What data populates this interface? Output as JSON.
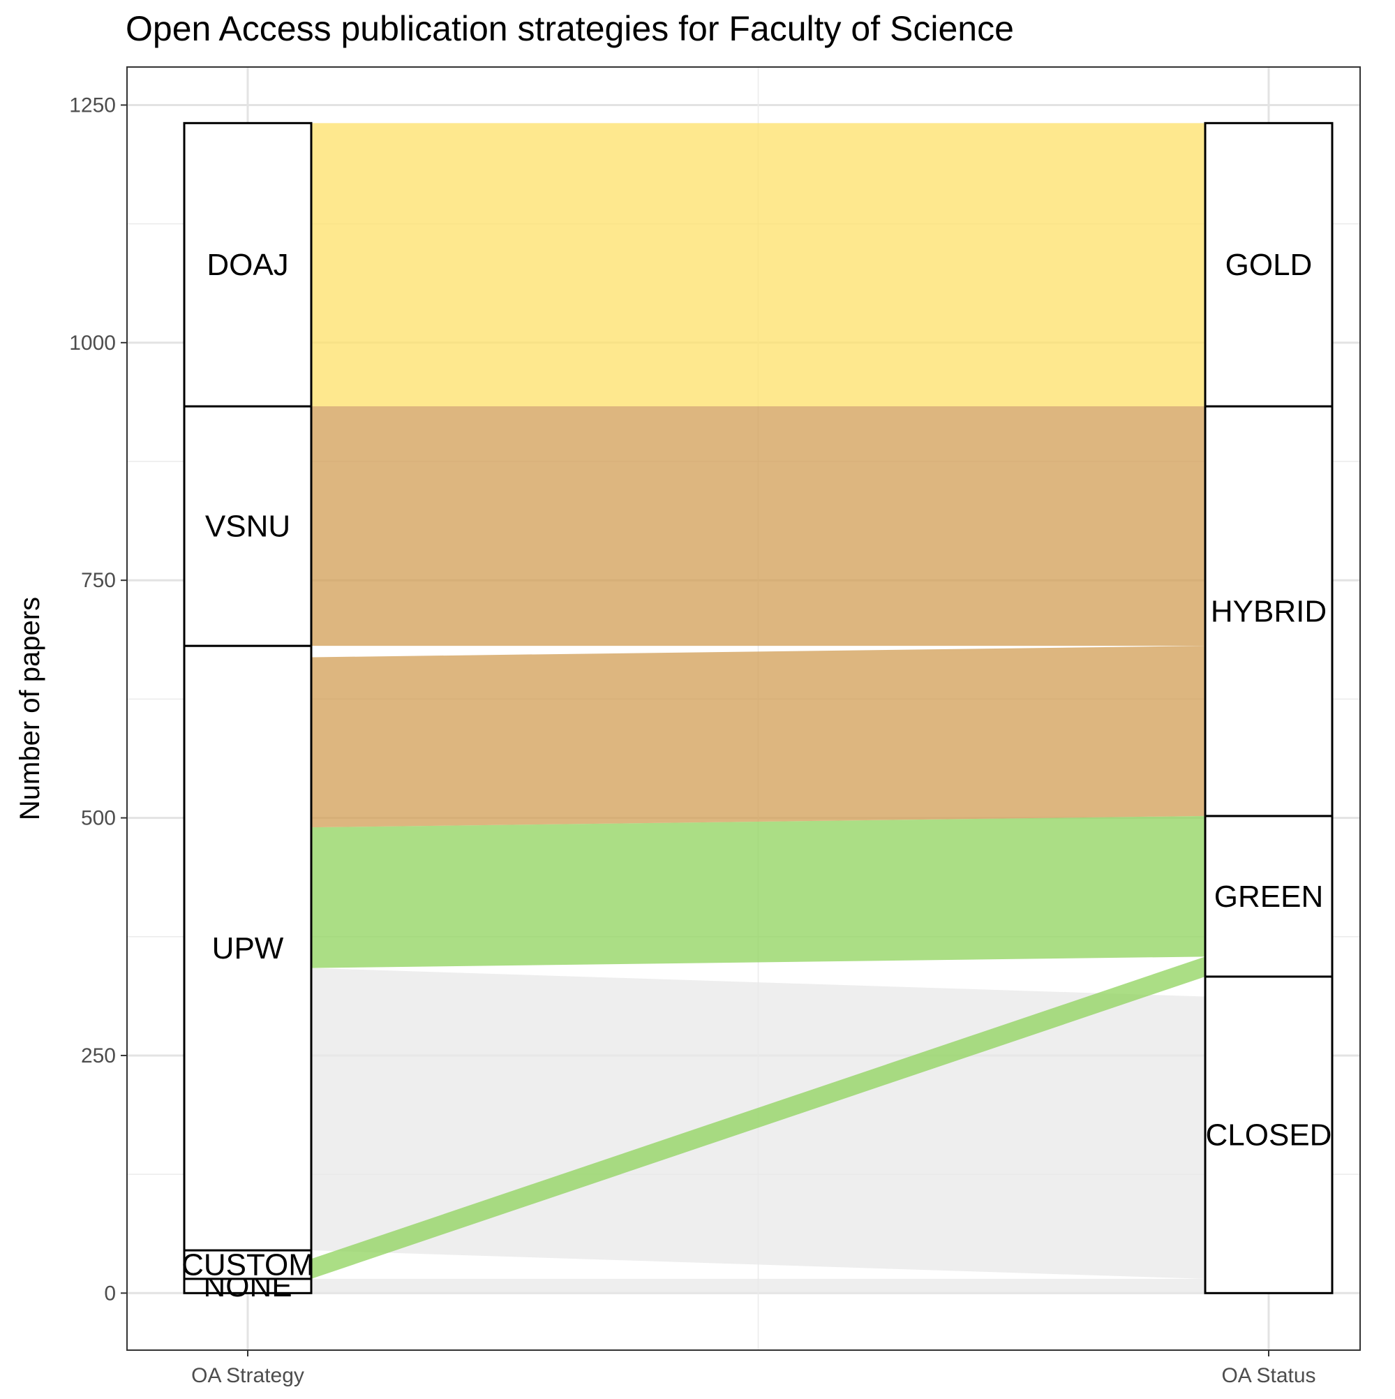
{
  "chart_data": {
    "type": "alluvial",
    "title": "Open Access publication strategies for Faculty of Science",
    "xlabel": "",
    "ylabel": "Number of papers",
    "ylim": [
      -60,
      1290
    ],
    "y_ticks": [
      0,
      250,
      500,
      750,
      1000,
      1250
    ],
    "y_tick_labels": [
      "0",
      "250",
      "500",
      "750",
      "1000",
      "1250"
    ],
    "axes": [
      "OA Strategy",
      "OA Status"
    ],
    "grid": true,
    "strata": {
      "OA Strategy": [
        {
          "label": "NONE",
          "value": 15
        },
        {
          "label": "CUSTOM",
          "value": 30
        },
        {
          "label": "UPW",
          "value": 636
        },
        {
          "label": "VSNU",
          "value": 252
        },
        {
          "label": "DOAJ",
          "value": 298
        }
      ],
      "OA Status": [
        {
          "label": "CLOSED",
          "value": 333
        },
        {
          "label": "GREEN",
          "value": 169
        },
        {
          "label": "HYBRID",
          "value": 431
        },
        {
          "label": "GOLD",
          "value": 298
        }
      ]
    },
    "flows": [
      {
        "from": "NONE",
        "to": "CLOSED",
        "value": 15,
        "color": "#e8e8e8"
      },
      {
        "from": "UPW",
        "to": "CLOSED",
        "value": 297,
        "color": "#e8e8e8"
      },
      {
        "from": "CUSTOM",
        "to": "GREEN",
        "value": 21,
        "color": "#8fd35c"
      },
      {
        "from": "UPW",
        "to": "GREEN",
        "value": 148,
        "color": "#8fd35c"
      },
      {
        "from": "UPW",
        "to": "HYBRID",
        "value": 179,
        "color": "#d19e54"
      },
      {
        "from": "VSNU",
        "to": "HYBRID",
        "value": 252,
        "color": "#d19e54"
      },
      {
        "from": "DOAJ",
        "to": "GOLD",
        "value": 298,
        "color": "#fde068"
      }
    ],
    "colors": {
      "closed": "#e8e8e8",
      "green": "#8fd35c",
      "hybrid": "#d19e54",
      "gold": "#fde068"
    }
  }
}
